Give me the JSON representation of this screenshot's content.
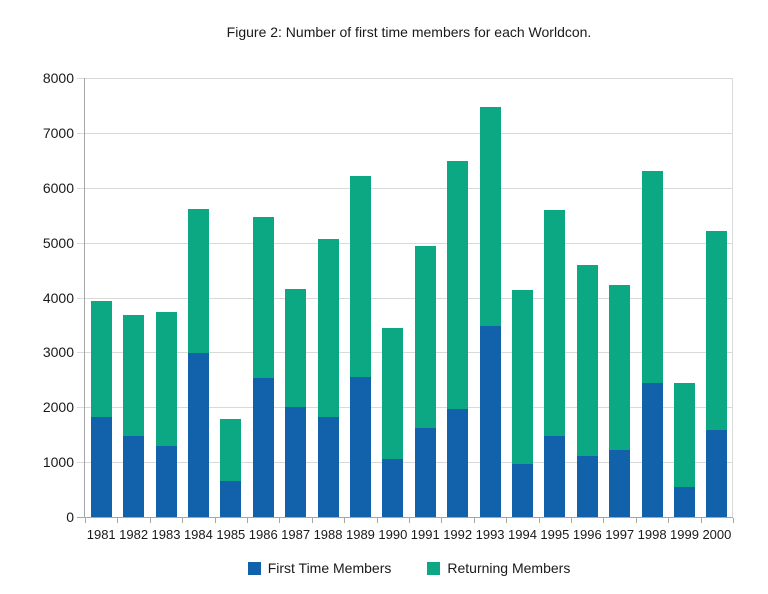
{
  "figure": {
    "title": "Figure 2: Number of first time members for each Worldcon."
  },
  "chart_data": {
    "type": "bar",
    "subtype": "stacked",
    "title": "Figure 2: Number of first time members for each Worldcon.",
    "categories": [
      "1981",
      "1982",
      "1983",
      "1984",
      "1985",
      "1986",
      "1987",
      "1988",
      "1989",
      "1990",
      "1991",
      "1992",
      "1993",
      "1994",
      "1995",
      "1996",
      "1997",
      "1998",
      "1999",
      "2000"
    ],
    "series": [
      {
        "name": "First Time Members",
        "color": "#1261AB",
        "values": [
          1820,
          1480,
          1300,
          2980,
          650,
          2530,
          2000,
          1830,
          2560,
          1050,
          1620,
          1960,
          3490,
          970,
          1470,
          1120,
          1220,
          2440,
          540,
          1590
        ]
      },
      {
        "name": "Returning Members",
        "color": "#0CA883",
        "values": [
          2110,
          2200,
          2440,
          2640,
          1140,
          2930,
          2150,
          3240,
          3660,
          2400,
          3320,
          4520,
          3980,
          3160,
          4130,
          3470,
          3000,
          3860,
          1910,
          3630
        ]
      }
    ],
    "stacked_totals": [
      3930,
      3680,
      3740,
      5620,
      1790,
      5460,
      4150,
      5070,
      6220,
      3450,
      4940,
      6480,
      7470,
      4130,
      5600,
      4590,
      4220,
      6300,
      2450,
      5220
    ],
    "xlabel": "",
    "ylabel": "",
    "ylim": [
      0,
      8000
    ],
    "yticks": [
      0,
      1000,
      2000,
      3000,
      4000,
      5000,
      6000,
      7000,
      8000
    ],
    "grid": true,
    "gridline_color": "#d9d9d9",
    "axis_color": "#a6a6a6",
    "legend_position": "bottom"
  }
}
